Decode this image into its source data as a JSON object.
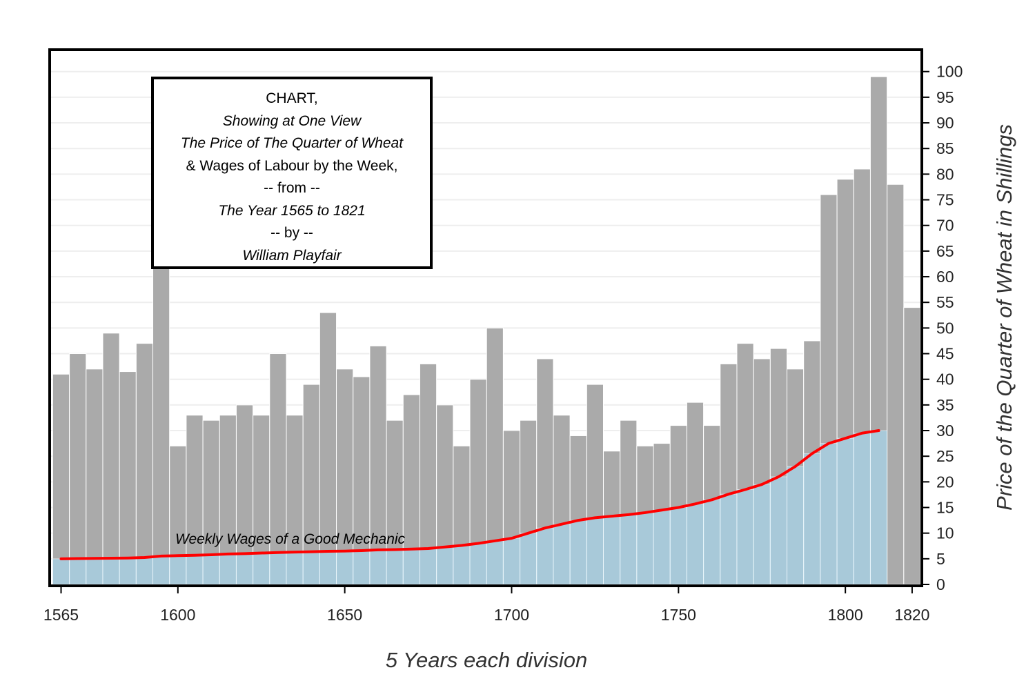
{
  "chart_data": {
    "type": "bar",
    "title_lines": [
      "CHART,",
      "Showing at One View",
      "The Price of The Quarter of Wheat",
      "& Wages of Labour by the Week,",
      "-- from --",
      "The Year 1565 to 1821",
      "-- by --",
      "William Playfair"
    ],
    "xlabel": "5 Years each division",
    "ylabel": "Price of the Quarter of Wheat in Shillings",
    "annotation": "Weekly Wages of a Good Mechanic",
    "xlim": [
      1562,
      1822.5
    ],
    "ylim": [
      0,
      104
    ],
    "x_ticks": [
      1565,
      1600,
      1650,
      1700,
      1750,
      1800,
      1820
    ],
    "y_ticks": [
      0,
      5,
      10,
      15,
      20,
      25,
      30,
      35,
      40,
      45,
      50,
      55,
      60,
      65,
      70,
      75,
      80,
      85,
      90,
      95,
      100
    ],
    "grid": true,
    "series": [
      {
        "kind": "bar",
        "x": [
          1565,
          1570,
          1575,
          1580,
          1585,
          1590,
          1595,
          1600,
          1605,
          1610,
          1615,
          1620,
          1625,
          1630,
          1635,
          1640,
          1645,
          1650,
          1655,
          1660,
          1665,
          1670,
          1675,
          1680,
          1685,
          1690,
          1695,
          1700,
          1705,
          1710,
          1715,
          1720,
          1725,
          1730,
          1735,
          1740,
          1745,
          1750,
          1755,
          1760,
          1765,
          1770,
          1775,
          1780,
          1785,
          1790,
          1795,
          1800,
          1805,
          1810,
          1815,
          1820
        ],
        "values": [
          41,
          45,
          42,
          49,
          41.5,
          47,
          64,
          27,
          33,
          32,
          33,
          35,
          33,
          45,
          33,
          39,
          53,
          42,
          40.5,
          46.5,
          32,
          37,
          43,
          35,
          27,
          40,
          50,
          30,
          32,
          44,
          33,
          29,
          39,
          26,
          32,
          27,
          27.5,
          31,
          35.5,
          31,
          43,
          47,
          44,
          46,
          42,
          47.5,
          76,
          79,
          81,
          99,
          78,
          54
        ]
      },
      {
        "kind": "area-line",
        "x": [
          1565,
          1570,
          1575,
          1580,
          1585,
          1590,
          1595,
          1600,
          1605,
          1610,
          1615,
          1620,
          1625,
          1630,
          1635,
          1640,
          1645,
          1650,
          1655,
          1660,
          1665,
          1670,
          1675,
          1680,
          1685,
          1690,
          1695,
          1700,
          1705,
          1710,
          1715,
          1720,
          1725,
          1730,
          1735,
          1740,
          1745,
          1750,
          1755,
          1760,
          1765,
          1770,
          1775,
          1780,
          1785,
          1790,
          1795,
          1800,
          1805,
          1810
        ],
        "values": [
          5,
          5.05,
          5.08,
          5.12,
          5.15,
          5.25,
          5.54,
          5.61,
          5.69,
          5.78,
          5.94,
          6.01,
          6.12,
          6.22,
          6.3,
          6.37,
          6.45,
          6.5,
          6.6,
          6.75,
          6.8,
          6.9,
          7,
          7.3,
          7.6,
          8,
          8.5,
          9,
          10,
          11,
          11.75,
          12.5,
          13,
          13.3,
          13.6,
          14,
          14.5,
          15,
          15.7,
          16.5,
          17.6,
          18.5,
          19.5,
          21,
          23,
          25.5,
          27.5,
          28.5,
          29.5,
          30
        ]
      }
    ],
    "colors": {
      "bar": "#aaaaaa",
      "area": "#a6d5ec",
      "line": "#ff0000",
      "grid": "#eeeeee",
      "frame": "#000000"
    }
  }
}
